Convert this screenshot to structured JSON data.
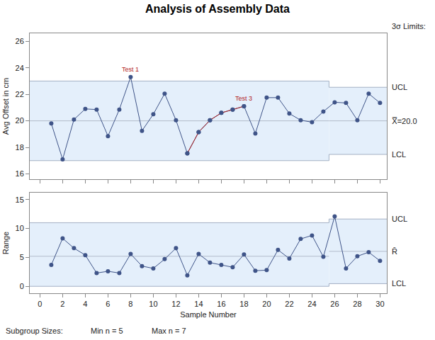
{
  "title": "Analysis of Assembly Data",
  "limits_heading": "3σ Limits:",
  "footnote": [
    "Subgroup Sizes:",
    "Min n = 5",
    "Max n = 7"
  ],
  "chart_data": [
    {
      "type": "line",
      "y_label": "Avg Offset in cm",
      "x": [
        1,
        2,
        3,
        4,
        5,
        6,
        7,
        8,
        9,
        10,
        11,
        12,
        13,
        14,
        15,
        16,
        17,
        18,
        19,
        20,
        21,
        22,
        23,
        24,
        25,
        26,
        27,
        28,
        29,
        30
      ],
      "values": [
        19.8,
        17.1,
        20.1,
        20.9,
        20.85,
        18.85,
        20.85,
        23.3,
        19.25,
        20.5,
        22.05,
        20.05,
        17.55,
        19.15,
        20.05,
        20.6,
        20.85,
        21.1,
        19.05,
        21.75,
        21.75,
        20.55,
        20.05,
        19.9,
        20.7,
        21.4,
        21.35,
        20.05,
        22.05,
        21.35
      ],
      "color": "#3f5488",
      "marker": "circle",
      "xlim": [
        -0.9,
        30.6
      ],
      "xticks": [
        0,
        2,
        4,
        6,
        8,
        10,
        12,
        14,
        16,
        18,
        20,
        22,
        24,
        26,
        28,
        30
      ],
      "ylim": [
        15.6,
        26.6
      ],
      "yticks": [
        16,
        18,
        20,
        22,
        24,
        26
      ],
      "tick_labels": "y",
      "limits": [
        {
          "x": [
            -0.9,
            25.5
          ],
          "ucl": 23.0,
          "center": 20.0,
          "lcl": 17.0
        },
        {
          "x": [
            25.5,
            30.6
          ],
          "ucl": 22.53,
          "center": 20.0,
          "lcl": 17.47
        }
      ],
      "limit_labels": {
        "ucl": "UCL",
        "center": "X̿=20.0",
        "lcl": "LCL"
      },
      "annotations": [
        {
          "text": "Test 1",
          "x": 8,
          "color": "#b22222"
        },
        {
          "text": "Test 3",
          "x": 18,
          "from": 13,
          "color": "#b22222"
        }
      ]
    },
    {
      "type": "line",
      "x_label": "Sample Number",
      "y_label": "Range",
      "x": [
        1,
        2,
        3,
        4,
        5,
        6,
        7,
        8,
        9,
        10,
        11,
        12,
        13,
        14,
        15,
        16,
        17,
        18,
        19,
        20,
        21,
        22,
        23,
        24,
        25,
        26,
        27,
        28,
        29,
        30
      ],
      "values": [
        3.7,
        8.3,
        6.6,
        5.4,
        2.3,
        2.6,
        2.3,
        5.6,
        3.5,
        3.1,
        4.7,
        6.6,
        1.9,
        5.6,
        4.1,
        3.7,
        3.3,
        5.5,
        2.7,
        2.8,
        6.3,
        4.8,
        8.2,
        8.8,
        5.1,
        12.1,
        3.1,
        5.2,
        5.9,
        4.4
      ],
      "color": "#3f5488",
      "marker": "circle",
      "xlim": [
        -0.9,
        30.6
      ],
      "xticks": [
        0,
        2,
        4,
        6,
        8,
        10,
        12,
        14,
        16,
        18,
        20,
        22,
        24,
        26,
        28,
        30
      ],
      "ylim": [
        -1.2,
        16.2
      ],
      "yticks": [
        0,
        5,
        10,
        15
      ],
      "limits": [
        {
          "x": [
            -0.9,
            25.5
          ],
          "ucl": 11.0,
          "center": 5.2,
          "lcl": 0.0
        },
        {
          "x": [
            25.5,
            30.6
          ],
          "ucl": 11.64,
          "center": 6.05,
          "lcl": 0.46
        }
      ],
      "limit_labels": {
        "ucl": "UCL",
        "center": "R̄",
        "lcl": "LCL"
      }
    }
  ]
}
